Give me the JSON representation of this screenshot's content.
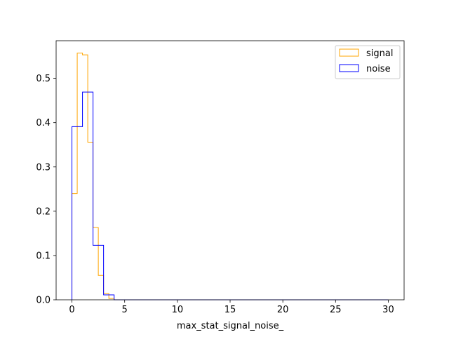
{
  "chart_data": {
    "type": "histogram",
    "title": "",
    "xlabel": "max_stat_signal_noise_",
    "ylabel": "",
    "xlim": [
      -1.5,
      31.5
    ],
    "ylim": [
      0,
      0.585
    ],
    "xticks": [
      "0",
      "5",
      "10",
      "15",
      "20",
      "25",
      "30"
    ],
    "xtick_values": [
      0,
      5,
      10,
      15,
      20,
      25,
      30
    ],
    "yticks": [
      "0.0",
      "0.1",
      "0.2",
      "0.3",
      "0.4",
      "0.5"
    ],
    "ytick_values": [
      0,
      0.1,
      0.2,
      0.3,
      0.4,
      0.5
    ],
    "grid": false,
    "legend_position": "top-right",
    "series": [
      {
        "name": "signal",
        "color": "#ffa500",
        "bin_edges": [
          0,
          0.5,
          1,
          1.5,
          2,
          2.5,
          3,
          3.5,
          4,
          30
        ],
        "values": [
          0.24,
          0.557,
          0.553,
          0.356,
          0.163,
          0.055,
          0.014,
          0.003,
          0.0
        ]
      },
      {
        "name": "noise",
        "color": "#0000ff",
        "bin_edges": [
          0,
          1,
          2,
          3,
          4,
          30
        ],
        "values": [
          0.391,
          0.469,
          0.123,
          0.011,
          0.0
        ]
      }
    ]
  }
}
